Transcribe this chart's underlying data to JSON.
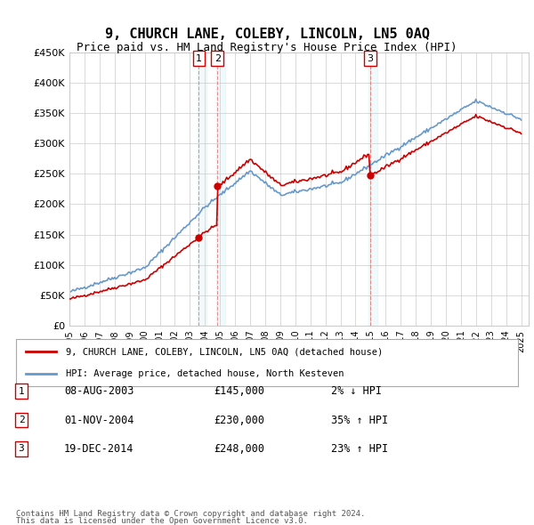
{
  "title": "9, CHURCH LANE, COLEBY, LINCOLN, LN5 0AQ",
  "subtitle": "Price paid vs. HM Land Registry's House Price Index (HPI)",
  "legend_property": "9, CHURCH LANE, COLEBY, LINCOLN, LN5 0AQ (detached house)",
  "legend_hpi": "HPI: Average price, detached house, North Kesteven",
  "transactions": [
    {
      "num": 1,
      "date": "08-AUG-2003",
      "price": 145000,
      "pct": "2%",
      "dir": "↓",
      "year": 2003.6
    },
    {
      "num": 2,
      "date": "01-NOV-2004",
      "price": 230000,
      "pct": "35%",
      "dir": "↑",
      "year": 2004.83
    },
    {
      "num": 3,
      "date": "19-DEC-2014",
      "price": 248000,
      "pct": "23%",
      "dir": "↑",
      "year": 2014.96
    }
  ],
  "footer1": "Contains HM Land Registry data © Crown copyright and database right 2024.",
  "footer2": "This data is licensed under the Open Government Licence v3.0.",
  "ylim": [
    0,
    450000
  ],
  "yticks": [
    0,
    50000,
    100000,
    150000,
    200000,
    250000,
    300000,
    350000,
    400000,
    450000
  ],
  "property_color": "#cc0000",
  "hpi_color": "#6699cc",
  "background_color": "#ffffff",
  "grid_color": "#cccccc"
}
